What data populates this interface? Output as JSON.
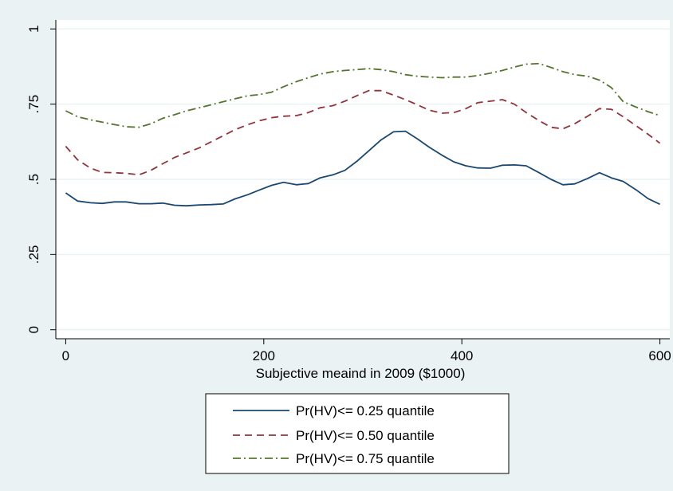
{
  "chart_data": {
    "type": "line",
    "title": "",
    "xlabel": "Subjective meaind in 2009 ($1000)",
    "ylabel": "",
    "xlim": [
      -10,
      610
    ],
    "ylim": [
      -0.03,
      1.03
    ],
    "xticks": [
      0,
      200,
      400,
      600
    ],
    "xtick_labels": [
      "0",
      "200",
      "400",
      "600"
    ],
    "yticks": [
      0,
      0.25,
      0.5,
      0.75,
      1
    ],
    "ytick_labels": [
      "0",
      ".25",
      ".5",
      ".75",
      "1"
    ],
    "grid": true,
    "legend_position": "bottom",
    "series": [
      {
        "name": "Pr(HV)<= 0.25 quantile",
        "color": "#1a476f",
        "dash": "solid",
        "x": [
          0,
          12,
          25,
          37,
          49,
          61,
          74,
          86,
          98,
          110,
          122,
          135,
          147,
          159,
          171,
          184,
          196,
          208,
          220,
          233,
          245,
          257,
          270,
          282,
          294,
          306,
          318,
          331,
          343,
          355,
          367,
          380,
          392,
          404,
          416,
          429,
          441,
          453,
          465,
          478,
          490,
          502,
          514,
          527,
          539,
          551,
          563,
          576,
          588,
          600
        ],
        "y": [
          0.455,
          0.428,
          0.422,
          0.42,
          0.425,
          0.425,
          0.419,
          0.419,
          0.421,
          0.414,
          0.412,
          0.415,
          0.416,
          0.418,
          0.435,
          0.449,
          0.465,
          0.48,
          0.49,
          0.482,
          0.486,
          0.505,
          0.515,
          0.53,
          0.56,
          0.595,
          0.63,
          0.658,
          0.66,
          0.635,
          0.607,
          0.58,
          0.558,
          0.545,
          0.538,
          0.537,
          0.547,
          0.548,
          0.545,
          0.522,
          0.5,
          0.482,
          0.485,
          0.503,
          0.522,
          0.505,
          0.493,
          0.465,
          0.436,
          0.417
        ]
      },
      {
        "name": "Pr(HV)<= 0.50 quantile",
        "color": "#90353b",
        "dash": "dashed",
        "x": [
          0,
          12,
          25,
          37,
          49,
          61,
          74,
          86,
          98,
          110,
          122,
          135,
          147,
          159,
          171,
          184,
          196,
          208,
          220,
          233,
          245,
          257,
          270,
          282,
          294,
          306,
          318,
          331,
          343,
          355,
          367,
          380,
          392,
          404,
          416,
          429,
          441,
          453,
          465,
          478,
          490,
          502,
          514,
          527,
          539,
          551,
          563,
          576,
          588,
          600
        ],
        "y": [
          0.61,
          0.565,
          0.537,
          0.523,
          0.522,
          0.52,
          0.515,
          0.53,
          0.552,
          0.573,
          0.588,
          0.605,
          0.625,
          0.645,
          0.665,
          0.682,
          0.695,
          0.705,
          0.71,
          0.712,
          0.722,
          0.738,
          0.745,
          0.76,
          0.778,
          0.795,
          0.795,
          0.78,
          0.765,
          0.748,
          0.73,
          0.72,
          0.722,
          0.735,
          0.755,
          0.76,
          0.765,
          0.75,
          0.722,
          0.695,
          0.673,
          0.668,
          0.685,
          0.71,
          0.735,
          0.733,
          0.708,
          0.678,
          0.65,
          0.62
        ]
      },
      {
        "name": "Pr(HV)<= 0.75 quantile",
        "color": "#55752f",
        "dash": "dashdot",
        "x": [
          0,
          12,
          25,
          37,
          49,
          61,
          74,
          86,
          98,
          110,
          122,
          135,
          147,
          159,
          171,
          184,
          196,
          208,
          220,
          233,
          245,
          257,
          270,
          282,
          294,
          306,
          318,
          331,
          343,
          355,
          367,
          380,
          392,
          404,
          416,
          429,
          441,
          453,
          465,
          478,
          490,
          502,
          514,
          527,
          539,
          551,
          563,
          576,
          588,
          600
        ],
        "y": [
          0.728,
          0.708,
          0.698,
          0.69,
          0.682,
          0.675,
          0.673,
          0.685,
          0.703,
          0.715,
          0.728,
          0.738,
          0.748,
          0.758,
          0.768,
          0.778,
          0.782,
          0.79,
          0.808,
          0.825,
          0.838,
          0.85,
          0.858,
          0.862,
          0.865,
          0.868,
          0.865,
          0.858,
          0.848,
          0.843,
          0.84,
          0.838,
          0.84,
          0.84,
          0.845,
          0.853,
          0.862,
          0.873,
          0.883,
          0.885,
          0.872,
          0.858,
          0.848,
          0.843,
          0.83,
          0.805,
          0.758,
          0.74,
          0.725,
          0.712
        ]
      }
    ]
  }
}
